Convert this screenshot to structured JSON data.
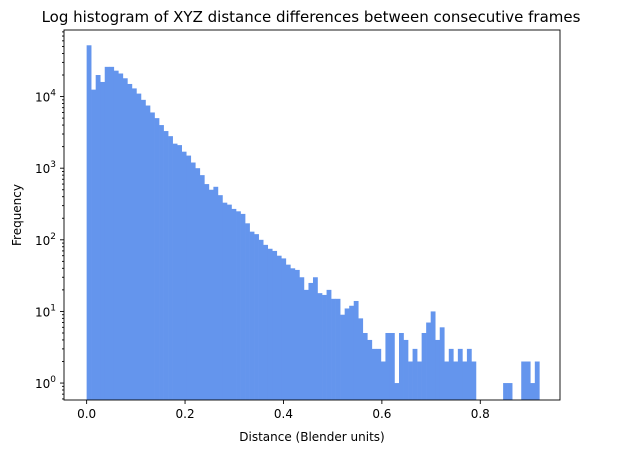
{
  "chart_data": {
    "type": "bar",
    "title": "Log histogram of XYZ distance differences between consecutive frames",
    "xlabel": "Distance (Blender units)",
    "ylabel": "Frequency",
    "yscale": "log",
    "xlim": [
      -0.046,
      0.962
    ],
    "ylim": [
      0.58,
      85000
    ],
    "bin_width": 0.0092,
    "color": "#6495ed",
    "x_ticks": [
      0.0,
      0.2,
      0.4,
      0.6,
      0.8
    ],
    "x_tick_labels": [
      "0.0",
      "0.2",
      "0.4",
      "0.6",
      "0.8"
    ],
    "y_ticks": [
      1,
      10,
      100,
      1000,
      10000
    ],
    "y_tick_labels": [
      {
        "base": "10",
        "exp": "0"
      },
      {
        "base": "10",
        "exp": "1"
      },
      {
        "base": "10",
        "exp": "2"
      },
      {
        "base": "10",
        "exp": "3"
      },
      {
        "base": "10",
        "exp": "4"
      }
    ],
    "grid": false,
    "legend": "none",
    "bin_starts": [
      0.0,
      0.0092,
      0.0184,
      0.0276,
      0.0368,
      0.046,
      0.0552,
      0.0644,
      0.0736,
      0.0828,
      0.092,
      0.1012,
      0.1104,
      0.1196,
      0.1288,
      0.138,
      0.1472,
      0.1564,
      0.1656,
      0.1748,
      0.184,
      0.1932,
      0.2024,
      0.2116,
      0.2208,
      0.23,
      0.2392,
      0.2484,
      0.2576,
      0.2668,
      0.276,
      0.2852,
      0.2944,
      0.3036,
      0.3128,
      0.322,
      0.3312,
      0.3404,
      0.3496,
      0.3588,
      0.368,
      0.3772,
      0.3864,
      0.3956,
      0.4048,
      0.414,
      0.4232,
      0.4324,
      0.4416,
      0.4508,
      0.46,
      0.4692,
      0.4784,
      0.4876,
      0.4968,
      0.506,
      0.5152,
      0.5244,
      0.5336,
      0.5428,
      0.552,
      0.5612,
      0.5704,
      0.5796,
      0.5888,
      0.598,
      0.6072,
      0.6164,
      0.6256,
      0.6348,
      0.644,
      0.6532,
      0.6624,
      0.6716,
      0.6808,
      0.69,
      0.6992,
      0.7084,
      0.7176,
      0.7268,
      0.736,
      0.7452,
      0.7544,
      0.7636,
      0.7728,
      0.782,
      0.7912,
      0.8004,
      0.8096,
      0.8188,
      0.828,
      0.8372,
      0.8464,
      0.8556,
      0.8648,
      0.874,
      0.8832,
      0.8924,
      0.9016,
      0.9108
    ],
    "values": [
      52000,
      12500,
      20000,
      16000,
      26000,
      26000,
      23000,
      21000,
      18000,
      15000,
      13000,
      11000,
      9000,
      7500,
      6000,
      5000,
      4000,
      3300,
      2800,
      2200,
      2100,
      1700,
      1500,
      1200,
      1000,
      800,
      600,
      500,
      550,
      420,
      330,
      310,
      270,
      250,
      230,
      170,
      130,
      120,
      100,
      85,
      75,
      70,
      60,
      55,
      45,
      40,
      38,
      30,
      20,
      25,
      30,
      18,
      17,
      20,
      15,
      15,
      9,
      11,
      12,
      14,
      8,
      5,
      4,
      3,
      3,
      2,
      5,
      5,
      1,
      5,
      4,
      2,
      3,
      2,
      5,
      7,
      10,
      4,
      6,
      2,
      3,
      2,
      3,
      2,
      3,
      2,
      0,
      0,
      0,
      0,
      0,
      0,
      1,
      1,
      0,
      0,
      2,
      2,
      1,
      2
    ]
  }
}
